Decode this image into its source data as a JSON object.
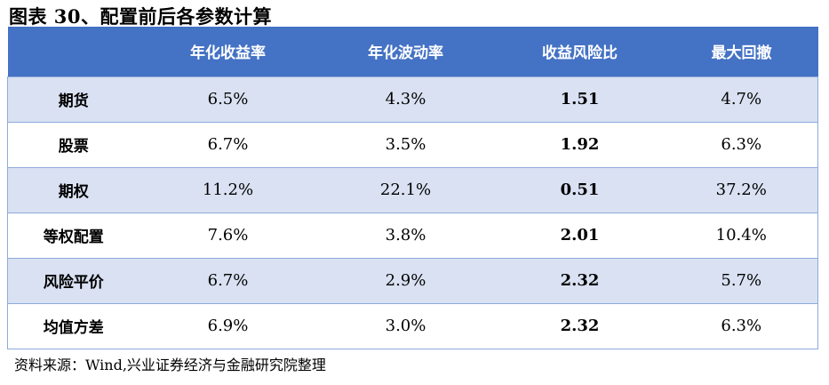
{
  "title": "图表 30、配置前后各参数计算",
  "table": {
    "headers": [
      "",
      "年化收益率",
      "年化波动率",
      "收益风险比",
      "最大回撤"
    ],
    "rows": [
      [
        "期货",
        "6.5%",
        "4.3%",
        "1.51",
        "4.7%"
      ],
      [
        "股票",
        "6.7%",
        "3.5%",
        "1.92",
        "6.3%"
      ],
      [
        "期权",
        "11.2%",
        "22.1%",
        "0.51",
        "37.2%"
      ],
      [
        "等权配置",
        "7.6%",
        "3.8%",
        "2.01",
        "10.4%"
      ],
      [
        "风险平价",
        "6.7%",
        "2.9%",
        "2.32",
        "5.7%"
      ],
      [
        "均值方差",
        "6.9%",
        "3.0%",
        "2.32",
        "6.3%"
      ]
    ]
  },
  "source": "资料来源：Wind,兴业证券经济与金融研究院整理",
  "colors": {
    "header_bg": "#4472c4",
    "row_shade": "#d9e1f2",
    "border": "#8eaadb"
  }
}
